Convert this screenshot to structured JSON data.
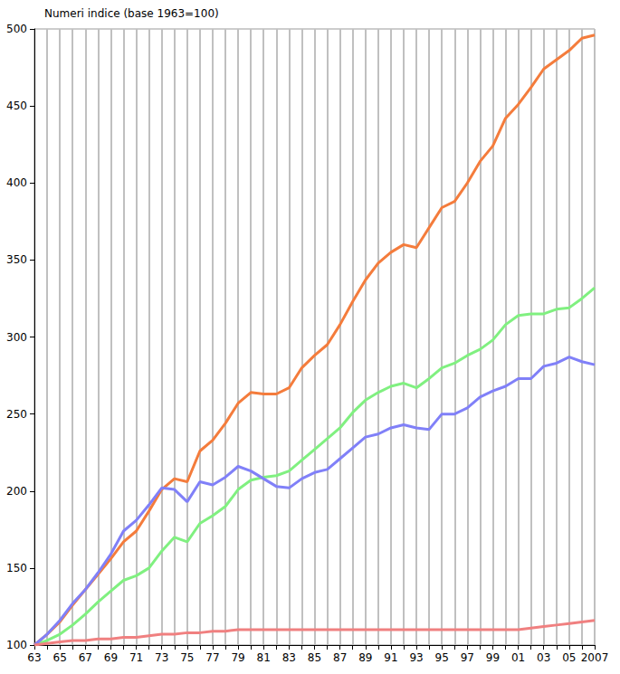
{
  "chart_data": {
    "type": "line",
    "title": "Numeri indice (base 1963=100)",
    "categories": [
      "63",
      null,
      "65",
      null,
      "67",
      null,
      "69",
      null,
      "71",
      null,
      "73",
      null,
      "75",
      null,
      "77",
      null,
      "79",
      null,
      "81",
      null,
      "83",
      null,
      "85",
      null,
      "87",
      null,
      "89",
      null,
      "91",
      null,
      "93",
      null,
      "95",
      null,
      "97",
      null,
      "99",
      null,
      "01",
      null,
      "03",
      null,
      "05",
      null,
      "2007"
    ],
    "series": [
      {
        "color": "#f47c3c",
        "values": [
          100,
          107,
          115,
          126,
          136,
          146,
          156,
          167,
          174,
          187,
          201,
          208,
          206,
          226,
          233,
          244,
          257,
          264,
          263,
          263,
          267,
          280,
          288,
          295,
          308,
          323,
          337,
          348,
          355,
          360,
          358,
          371,
          384,
          388,
          400,
          414,
          424,
          442,
          451,
          462,
          474,
          480,
          486,
          494,
          496
        ]
      },
      {
        "color": "#80f080",
        "values": [
          100,
          103,
          107,
          113,
          120,
          128,
          135,
          142,
          145,
          150,
          161,
          170,
          167,
          179,
          184,
          190,
          201,
          207,
          209,
          210,
          213,
          220,
          227,
          234,
          241,
          251,
          259,
          264,
          268,
          270,
          267,
          273,
          280,
          283,
          288,
          292,
          298,
          308,
          314,
          315,
          315,
          318,
          319,
          325,
          332
        ]
      },
      {
        "color": "#8080f8",
        "values": [
          100,
          107,
          116,
          127,
          136,
          147,
          159,
          174,
          181,
          191,
          202,
          201,
          193,
          206,
          204,
          209,
          216,
          213,
          208,
          203,
          202,
          208,
          212,
          214,
          221,
          228,
          235,
          237,
          241,
          243,
          241,
          240,
          250,
          250,
          254,
          261,
          265,
          268,
          273,
          273,
          281,
          283,
          287,
          284,
          282
        ]
      },
      {
        "color": "#f08080",
        "values": [
          100,
          101,
          102,
          103,
          103,
          104,
          104,
          105,
          105,
          106,
          107,
          107,
          108,
          108,
          109,
          109,
          110,
          110,
          110,
          110,
          110,
          110,
          110,
          110,
          110,
          110,
          110,
          110,
          110,
          110,
          110,
          110,
          110,
          110,
          110,
          110,
          110,
          110,
          110,
          111,
          112,
          113,
          114,
          115,
          116
        ]
      }
    ],
    "ylim": [
      100,
      500
    ],
    "yticks": [
      100,
      150,
      200,
      250,
      300,
      350,
      400,
      450,
      500
    ],
    "grid": true
  }
}
